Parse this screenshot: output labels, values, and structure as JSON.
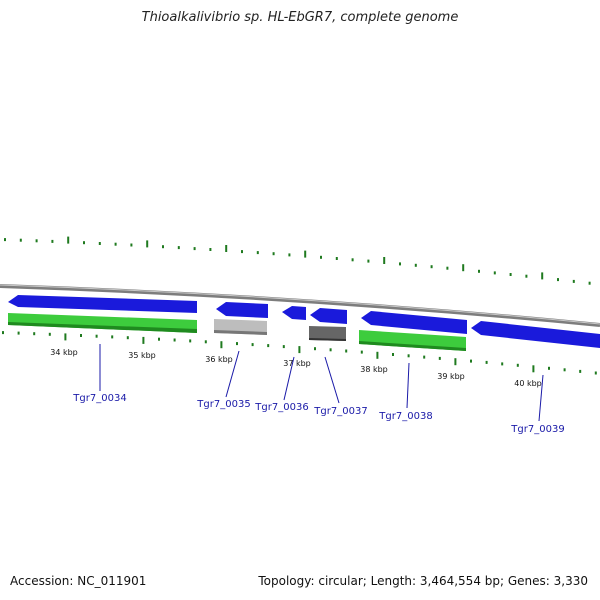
{
  "header": {
    "title": "Thioalkalivibrio sp. HL-EbGR7, complete genome"
  },
  "footer": {
    "accession": "Accession: NC_011901",
    "summary": "Topology: circular; Length: 3,464,554 bp; Genes: 3,330"
  },
  "colors": {
    "forward_strand": "#1a1adb",
    "reverse_green": "#3dcc3d",
    "reverse_grey": "#bdbdbd",
    "reverse_dark": "#666666",
    "backbone": "#888888",
    "tick": "#1f7a1f",
    "label": "#1a1aa8"
  },
  "scale": {
    "labels": [
      "34 kbp",
      "35 kbp",
      "36 kbp",
      "37 kbp",
      "38 kbp",
      "39 kbp",
      "40 kbp"
    ]
  },
  "genes": [
    {
      "name": "Tgr7_0034"
    },
    {
      "name": "Tgr7_0035"
    },
    {
      "name": "Tgr7_0036"
    },
    {
      "name": "Tgr7_0037"
    },
    {
      "name": "Tgr7_0038"
    },
    {
      "name": "Tgr7_0039"
    }
  ]
}
